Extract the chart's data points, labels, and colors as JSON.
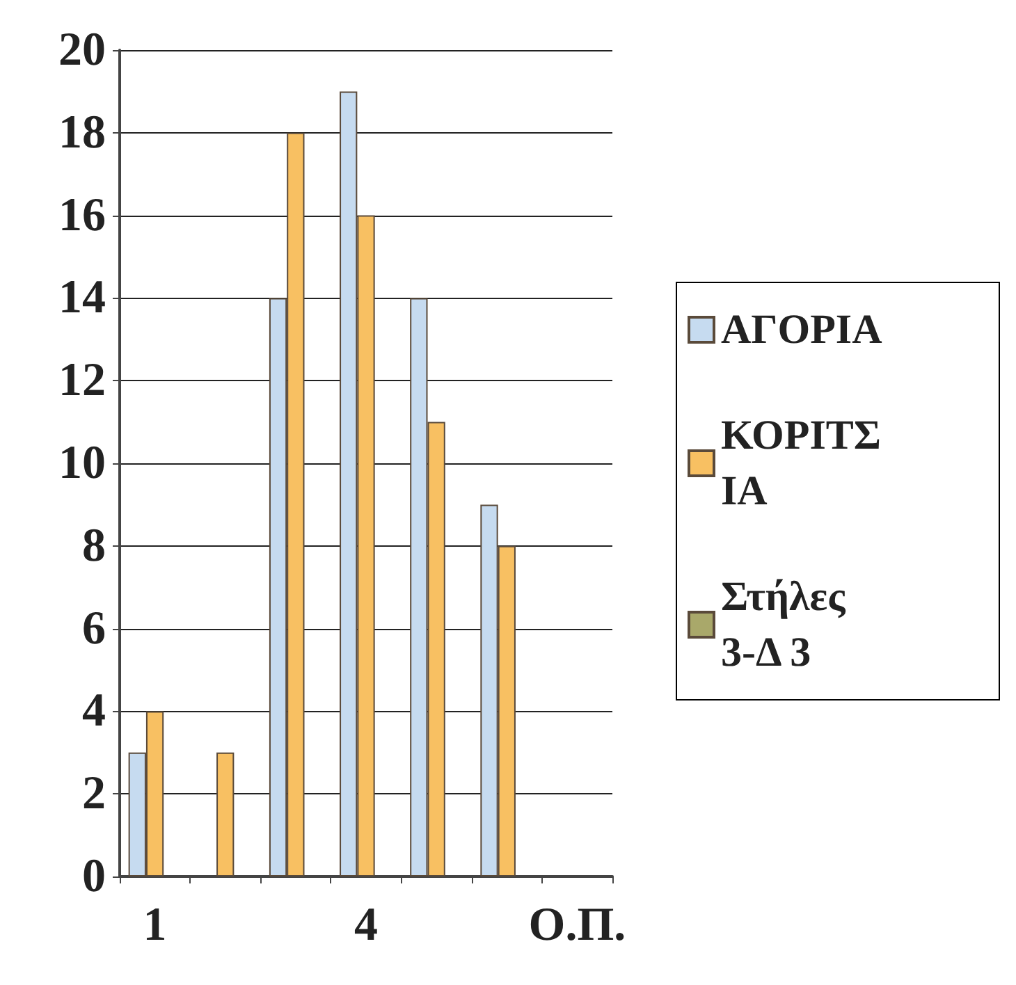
{
  "chart_data": {
    "type": "bar",
    "categories": [
      "1",
      null,
      null,
      "4",
      null,
      null,
      "Ο.Π."
    ],
    "series": [
      {
        "name": "ΑΓΟΡΙΑ",
        "color": "#c6dbf0",
        "values": [
          3,
          0,
          14,
          19,
          14,
          9,
          0
        ]
      },
      {
        "name": "ΚΟΡΙΤΣΙΑ",
        "color": "#f8c062",
        "values": [
          4,
          3,
          18,
          16,
          11,
          8,
          0
        ]
      },
      {
        "name": "Στήλες 3-Δ 3",
        "color": "#a9a86a",
        "values": [
          null,
          null,
          null,
          null,
          null,
          null,
          null
        ]
      }
    ],
    "ylim": [
      0,
      20
    ],
    "yticks": [
      0,
      2,
      4,
      6,
      8,
      10,
      12,
      14,
      16,
      18,
      20
    ],
    "grid": "y",
    "legend": "right"
  }
}
